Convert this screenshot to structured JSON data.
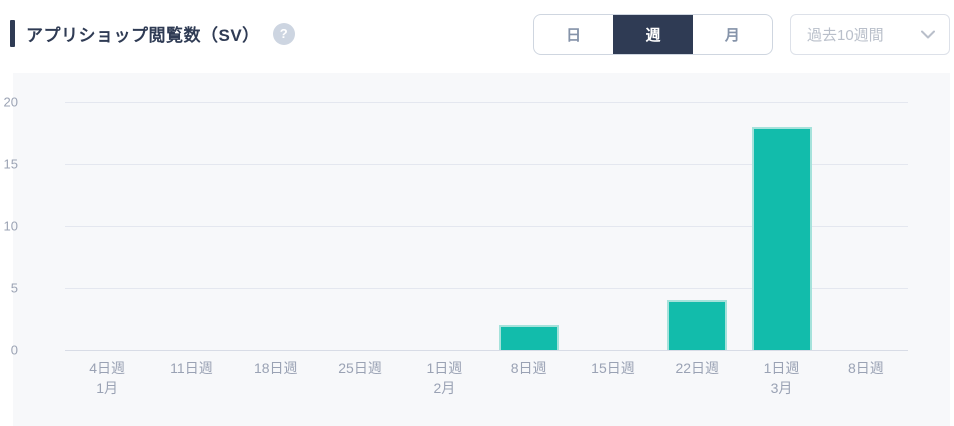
{
  "header": {
    "title": "アプリショップ閲覧数（SV）",
    "help_icon": "?"
  },
  "controls": {
    "period_toggle": [
      {
        "label": "日",
        "selected": false
      },
      {
        "label": "週",
        "selected": true
      },
      {
        "label": "月",
        "selected": false
      }
    ],
    "range_select": {
      "value": "過去10週間"
    }
  },
  "colors": {
    "accent_navy": "#2f3b54",
    "bar_teal": "#12bcab",
    "bar_edge": "#a5e2db",
    "panel_bg": "#f7f8fa",
    "tick_text": "#9aa2b4"
  },
  "chart_data": {
    "type": "bar",
    "title": "アプリショップ閲覧数（SV）",
    "categories": [
      "4日週",
      "11日週",
      "18日週",
      "25日週",
      "1日週",
      "8日週",
      "15日週",
      "22日週",
      "1日週",
      "8日週"
    ],
    "month_labels": [
      "1月",
      "",
      "",
      "",
      "2月",
      "",
      "",
      "",
      "3月",
      ""
    ],
    "values": [
      0,
      0,
      0,
      0,
      0,
      2,
      0,
      4,
      18,
      0
    ],
    "xlabel": "",
    "ylabel": "",
    "ylim": [
      0,
      20
    ],
    "yticks": [
      0,
      5,
      10,
      15,
      20
    ],
    "grid": true,
    "legend": "none",
    "bar_color": "#12bcab"
  }
}
